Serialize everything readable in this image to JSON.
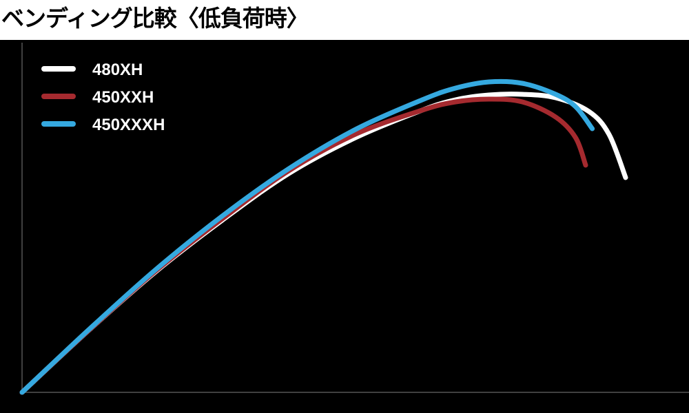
{
  "title": "ベンディング比較〈低負荷時〉",
  "colors": {
    "background": "#000000",
    "axis": "#555555",
    "title_text": "#000000",
    "legend_text": "#ffffff"
  },
  "chart_data": {
    "type": "line",
    "title": "ベンディング比較〈低負荷時〉",
    "xlabel": "",
    "ylabel": "",
    "xlim": [
      0,
      1000
    ],
    "ylim": [
      0,
      500
    ],
    "grid": false,
    "legend_position": "top-left",
    "series": [
      {
        "name": "480XH",
        "color": "#ffffff",
        "x": [
          0,
          100,
          200,
          300,
          400,
          500,
          600,
          650,
          700,
          750,
          800,
          850,
          880,
          905
        ],
        "y": [
          0,
          90,
          175,
          250,
          318,
          370,
          410,
          425,
          432,
          433,
          428,
          408,
          375,
          312
        ]
      },
      {
        "name": "450XXH",
        "color": "#a52a2f",
        "x": [
          0,
          100,
          200,
          300,
          400,
          500,
          600,
          650,
          700,
          750,
          800,
          830,
          845
        ],
        "y": [
          0,
          90,
          176,
          252,
          322,
          375,
          410,
          422,
          426,
          422,
          400,
          370,
          330
        ]
      },
      {
        "name": "450XXXH",
        "color": "#35a9e0",
        "x": [
          0,
          100,
          200,
          300,
          400,
          500,
          600,
          650,
          700,
          750,
          800,
          830,
          855
        ],
        "y": [
          0,
          91,
          178,
          256,
          325,
          382,
          425,
          442,
          451,
          449,
          433,
          415,
          383
        ]
      }
    ]
  }
}
